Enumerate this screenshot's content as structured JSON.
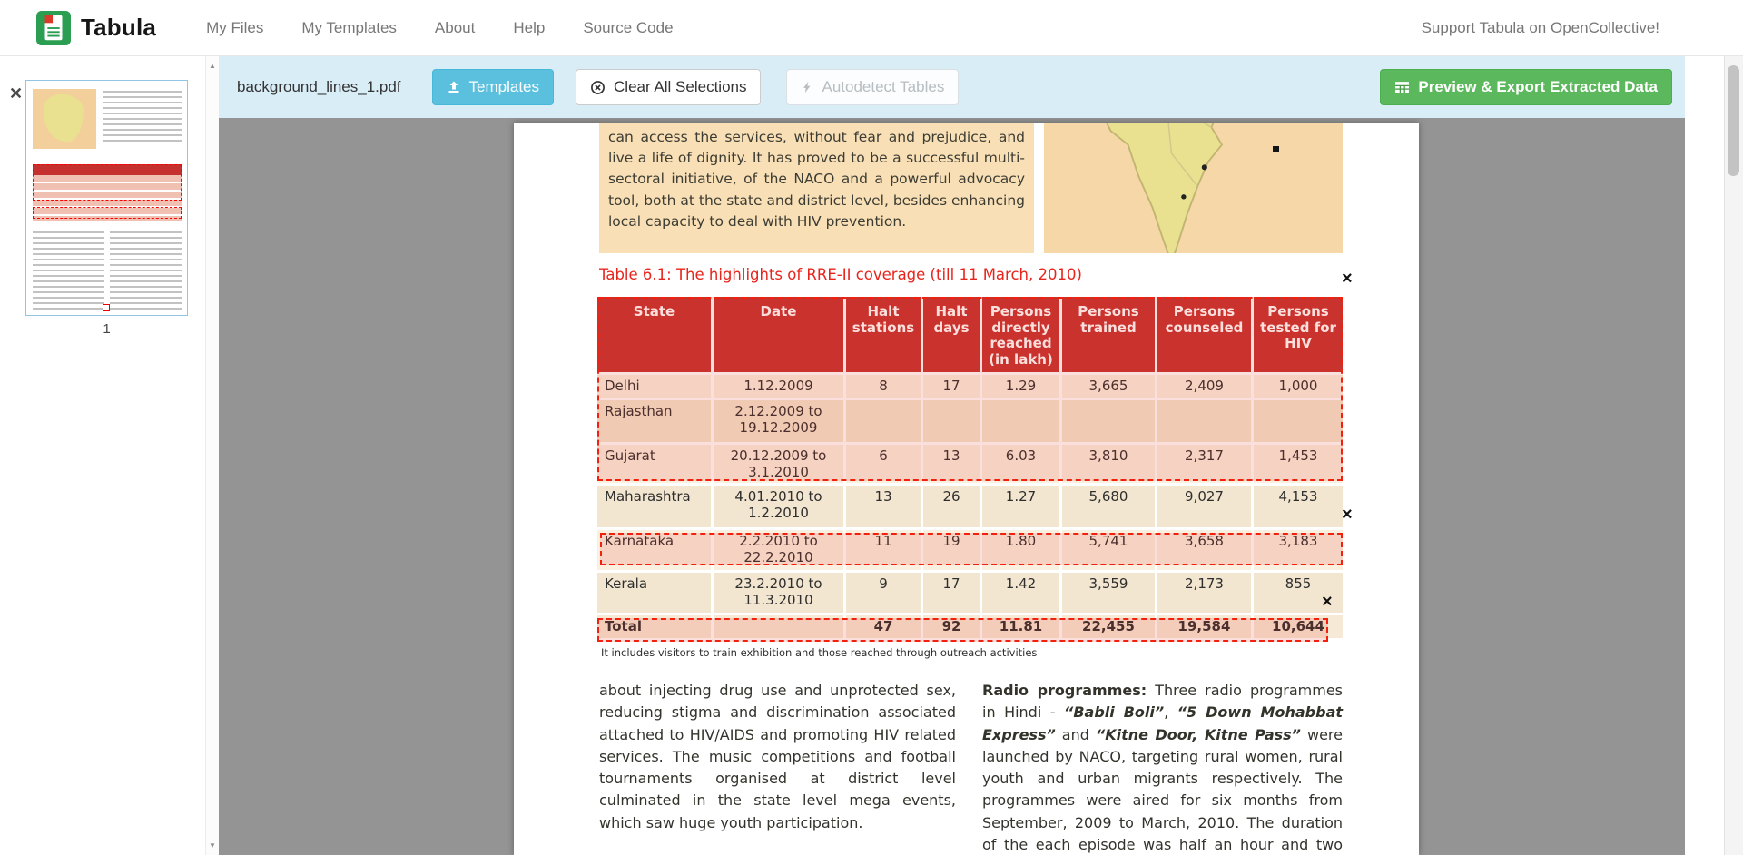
{
  "navbar": {
    "brand": "Tabula",
    "items": [
      "My Files",
      "My Templates",
      "About",
      "Help",
      "Source Code"
    ],
    "support_link": "Support Tabula on OpenCollective!"
  },
  "toolbar": {
    "filename": "background_lines_1.pdf",
    "templates_button": "Templates",
    "clear_selections_button": "Clear All Selections",
    "autodetect_button": "Autodetect Tables",
    "export_button": "Preview & Export Extracted Data"
  },
  "sidebar": {
    "page_number": "1"
  },
  "icons": {
    "sidebar_close_glyph": "✕",
    "selection_close_glyph": "×",
    "scroll_up_glyph": "▲",
    "scroll_down_glyph": "▼"
  },
  "colors": {
    "toolbar_blue": "#d9edf7",
    "templates_cyan": "#5bc0de",
    "export_green": "#5cb85c",
    "table_header_red": "#c5312f",
    "selection_red": "#f2200e",
    "title_red": "#e8251d",
    "viewer_gray": "#949494",
    "peach_background": "#f8dfb6"
  },
  "document": {
    "intro_text": "can access the services, without fear and prejudice, and live a life of dignity. It has proved to be a successful multi-sectoral initiative, of the NACO and a powerful advocacy tool, both at the state and district level, besides enhancing local capacity to deal with HIV prevention.",
    "table_title": "Table 6.1: The highlights of RRE-II coverage (till 11 March, 2010)",
    "table": {
      "headers": [
        "State",
        "Date",
        "Halt stations",
        "Halt days",
        "Persons directly reached (in lakh)",
        "Persons trained",
        "Persons counseled",
        "Persons tested for HIV"
      ],
      "rows": [
        [
          "Delhi",
          "1.12.2009",
          "8",
          "17",
          "1.29",
          "3,665",
          "2,409",
          "1,000"
        ],
        [
          "Rajasthan",
          "2.12.2009 to 19.12.2009",
          "",
          "",
          "",
          "",
          "",
          ""
        ],
        [
          "Gujarat",
          "20.12.2009 to 3.1.2010",
          "6",
          "13",
          "6.03",
          "3,810",
          "2,317",
          "1,453"
        ],
        [
          "Maharashtra",
          "4.01.2010 to 1.2.2010",
          "13",
          "26",
          "1.27",
          "5,680",
          "9,027",
          "4,153"
        ],
        [
          "Karnataka",
          "2.2.2010 to 22.2.2010",
          "11",
          "19",
          "1.80",
          "5,741",
          "3,658",
          "3,183"
        ],
        [
          "Kerala",
          "23.2.2010 to 11.3.2010",
          "9",
          "17",
          "1.42",
          "3,559",
          "2,173",
          "855"
        ],
        [
          "Total",
          "",
          "47",
          "92",
          "11.81",
          "22,455",
          "19,584",
          "10,644"
        ]
      ]
    },
    "footnote": "It includes visitors to train exhibition and those reached through outreach activities",
    "left_column_text": "about injecting drug use and unprotected sex, reducing stigma and discrimination associated attached to HIV/AIDS and promoting HIV related services. The music competitions and football tournaments organised at district level culminated in the state level mega events, which saw huge youth participation.",
    "right_column": {
      "lead": "Radio programmes:",
      "segments": [
        {
          "text": " Three radio programmes in Hindi - ",
          "italic": false
        },
        {
          "text": "“Babli Boli”",
          "italic": true
        },
        {
          "text": ", ",
          "italic": false
        },
        {
          "text": "“5 Down Mohabbat Express”",
          "italic": true
        },
        {
          "text": " and ",
          "italic": false
        },
        {
          "text": "“Kitne Door, Kitne Pass”",
          "italic": true
        },
        {
          "text": " were launched by NACO, targeting rural women, rural youth and urban migrants respectively. The programmes were aired for six months from September, 2009 to March, 2010. The duration of the each episode was half an hour and two episodes",
          "italic": false
        }
      ]
    }
  }
}
